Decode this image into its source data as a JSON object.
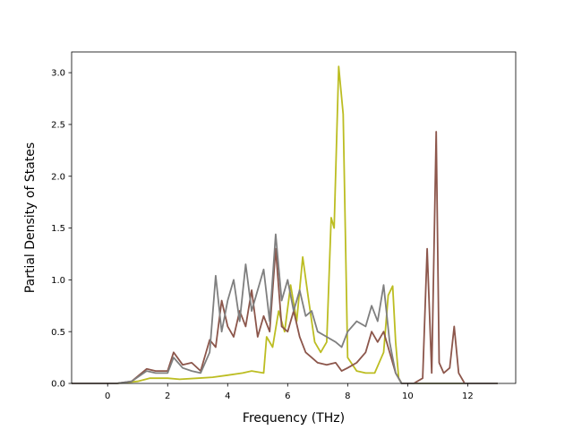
{
  "chart_data": {
    "type": "line",
    "title": "",
    "xlabel": "Frequency (THz)",
    "ylabel": "Partial Density of States",
    "xlim": [
      -1.2,
      13.6
    ],
    "ylim": [
      0.0,
      3.2
    ],
    "xticks": [
      0,
      2,
      4,
      6,
      8,
      10,
      12
    ],
    "xtick_labels": [
      "0",
      "2",
      "4",
      "6",
      "8",
      "10",
      "12"
    ],
    "yticks": [
      0.0,
      0.5,
      1.0,
      1.5,
      2.0,
      2.5,
      3.0
    ],
    "ytick_labels": [
      "0.0",
      "0.5",
      "1.0",
      "1.5",
      "2.0",
      "2.5",
      "3.0"
    ],
    "grid": false,
    "legend": "none",
    "series": [
      {
        "color": "#bcbd22",
        "x": [
          -1.2,
          0.3,
          1.0,
          1.4,
          2.0,
          2.4,
          3.0,
          3.5,
          4.0,
          4.5,
          4.8,
          5.2,
          5.3,
          5.5,
          5.7,
          5.9,
          6.1,
          6.3,
          6.5,
          6.7,
          6.9,
          7.1,
          7.3,
          7.45,
          7.55,
          7.7,
          7.85,
          8.0,
          8.3,
          8.6,
          8.9,
          9.2,
          9.35,
          9.5,
          9.6,
          9.7,
          9.8,
          10.2,
          13.0
        ],
        "y": [
          0.0,
          0.0,
          0.02,
          0.05,
          0.05,
          0.04,
          0.05,
          0.06,
          0.08,
          0.1,
          0.12,
          0.1,
          0.45,
          0.35,
          0.7,
          0.5,
          0.95,
          0.6,
          1.22,
          0.8,
          0.4,
          0.3,
          0.4,
          1.6,
          1.5,
          3.06,
          2.6,
          0.25,
          0.12,
          0.1,
          0.1,
          0.3,
          0.85,
          0.94,
          0.4,
          0.05,
          0.0,
          0.0,
          0.0
        ]
      },
      {
        "color": "#8c564b",
        "x": [
          -1.2,
          0.3,
          0.8,
          1.3,
          1.6,
          2.0,
          2.2,
          2.5,
          2.8,
          3.1,
          3.4,
          3.6,
          3.8,
          4.0,
          4.2,
          4.4,
          4.6,
          4.8,
          5.0,
          5.2,
          5.4,
          5.6,
          5.8,
          6.0,
          6.2,
          6.4,
          6.6,
          6.8,
          7.0,
          7.3,
          7.6,
          7.8,
          8.0,
          8.3,
          8.6,
          8.8,
          9.0,
          9.2,
          9.4,
          9.6,
          9.8,
          10.2,
          10.5,
          10.65,
          10.8,
          10.95,
          11.05,
          11.2,
          11.4,
          11.55,
          11.7,
          11.9,
          13.0
        ],
        "y": [
          0.0,
          0.0,
          0.02,
          0.14,
          0.12,
          0.12,
          0.3,
          0.18,
          0.2,
          0.12,
          0.42,
          0.35,
          0.8,
          0.55,
          0.45,
          0.7,
          0.55,
          0.9,
          0.45,
          0.65,
          0.5,
          1.3,
          0.55,
          0.5,
          0.7,
          0.45,
          0.3,
          0.25,
          0.2,
          0.18,
          0.2,
          0.12,
          0.15,
          0.2,
          0.3,
          0.5,
          0.4,
          0.5,
          0.3,
          0.1,
          0.0,
          0.0,
          0.05,
          1.3,
          0.1,
          2.43,
          0.2,
          0.1,
          0.15,
          0.55,
          0.1,
          0.0,
          0.0
        ]
      },
      {
        "color": "#7f7f7f",
        "x": [
          -1.2,
          0.3,
          0.8,
          1.3,
          1.6,
          2.0,
          2.2,
          2.5,
          2.8,
          3.1,
          3.4,
          3.6,
          3.8,
          4.0,
          4.2,
          4.4,
          4.6,
          4.8,
          5.0,
          5.2,
          5.4,
          5.6,
          5.8,
          6.0,
          6.2,
          6.4,
          6.6,
          6.8,
          7.0,
          7.3,
          7.6,
          7.8,
          8.0,
          8.3,
          8.6,
          8.8,
          9.0,
          9.2,
          9.4,
          9.6,
          9.8,
          13.0
        ],
        "y": [
          0.0,
          0.0,
          0.02,
          0.12,
          0.1,
          0.1,
          0.25,
          0.15,
          0.12,
          0.1,
          0.3,
          1.04,
          0.5,
          0.8,
          1.0,
          0.6,
          1.15,
          0.7,
          0.9,
          1.1,
          0.6,
          1.44,
          0.8,
          1.0,
          0.7,
          0.9,
          0.65,
          0.7,
          0.5,
          0.45,
          0.4,
          0.35,
          0.5,
          0.6,
          0.55,
          0.75,
          0.6,
          0.95,
          0.4,
          0.1,
          0.0,
          0.0
        ]
      }
    ]
  }
}
